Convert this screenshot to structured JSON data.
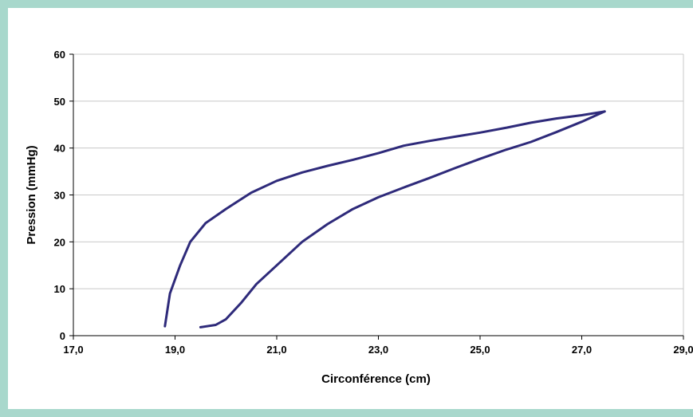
{
  "chart_data": {
    "type": "line",
    "title": "",
    "xlabel": "Circonférence (cm)",
    "ylabel": "Pression (mmHg)",
    "xlim": [
      17,
      29
    ],
    "ylim": [
      0,
      60
    ],
    "x_ticks": [
      "17,0",
      "19,0",
      "21,0",
      "23,0",
      "25,0",
      "27,0",
      "29,0"
    ],
    "y_ticks": [
      "0",
      "10",
      "20",
      "30",
      "40",
      "50",
      "60"
    ],
    "grid": "horizontal",
    "legend": "none",
    "color": "#2e2a7a",
    "series": [
      {
        "points": [
          [
            18.8,
            2
          ],
          [
            18.9,
            9
          ],
          [
            19.1,
            15
          ],
          [
            19.3,
            20
          ],
          [
            19.6,
            24
          ],
          [
            20.0,
            27
          ],
          [
            20.5,
            30.5
          ],
          [
            21.0,
            33
          ],
          [
            21.5,
            34.8
          ],
          [
            22.0,
            36.2
          ],
          [
            22.5,
            37.5
          ],
          [
            23.0,
            38.9
          ],
          [
            23.5,
            40.5
          ],
          [
            24.0,
            41.5
          ],
          [
            24.5,
            42.4
          ],
          [
            25.0,
            43.3
          ],
          [
            25.5,
            44.3
          ],
          [
            26.0,
            45.4
          ],
          [
            26.5,
            46.3
          ],
          [
            27.0,
            47
          ],
          [
            27.45,
            47.8
          ]
        ]
      },
      {
        "points": [
          [
            27.45,
            47.8
          ],
          [
            27.0,
            45.6
          ],
          [
            26.5,
            43.4
          ],
          [
            26.0,
            41.3
          ],
          [
            25.5,
            39.6
          ],
          [
            25.0,
            37.7
          ],
          [
            24.5,
            35.7
          ],
          [
            24.0,
            33.6
          ],
          [
            23.5,
            31.6
          ],
          [
            23.0,
            29.5
          ],
          [
            22.5,
            27
          ],
          [
            22.0,
            23.8
          ],
          [
            21.5,
            20
          ],
          [
            21.0,
            15
          ],
          [
            20.6,
            11
          ],
          [
            20.3,
            7
          ],
          [
            20.0,
            3.5
          ],
          [
            19.8,
            2.3
          ],
          [
            19.5,
            1.8
          ]
        ]
      }
    ]
  }
}
